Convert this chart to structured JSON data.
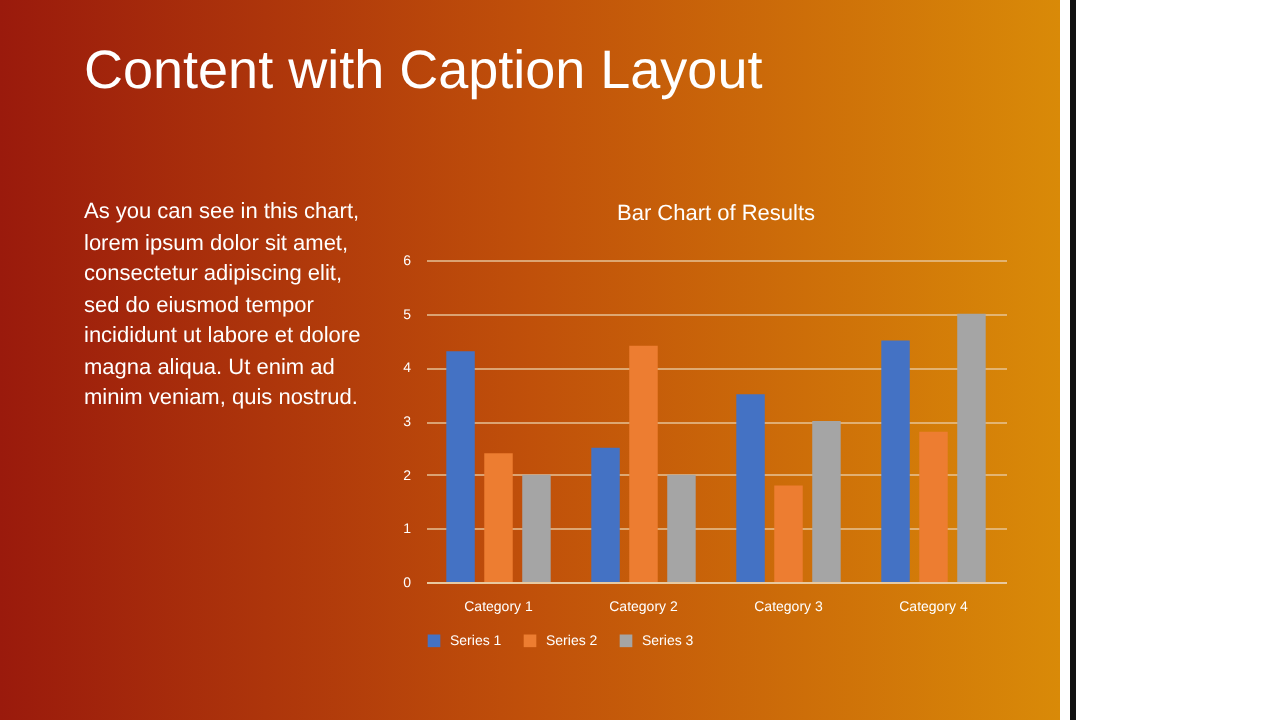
{
  "chart_data": {
    "type": "bar",
    "title": "Bar Chart of Results",
    "annotations": [
      "Content with Caption Layout",
      "As you can see in this chart, lorem ipsum dolor sit amet, consectetur adipiscing elit, sed do eiusmod tempor incididunt ut labore et dolore magna aliqua. Ut enim ad minim veniam, quis nostrud."
    ],
    "categories": [
      "Category 1",
      "Category 2",
      "Category 3",
      "Category 4"
    ],
    "series": [
      {
        "name": "Series 1",
        "color": "#4472c4",
        "values": [
          4.3,
          2.5,
          3.5,
          4.5
        ]
      },
      {
        "name": "Series 2",
        "color": "#ed7d31",
        "values": [
          2.4,
          4.4,
          1.8,
          2.8
        ]
      },
      {
        "name": "Series 3",
        "color": "#a5a5a5",
        "values": [
          2,
          2,
          3,
          5
        ]
      }
    ],
    "ylim": [
      0,
      6
    ],
    "yticks": [
      0,
      1,
      2,
      3,
      4,
      5,
      6
    ],
    "grid": "y",
    "legend": "bottom"
  }
}
